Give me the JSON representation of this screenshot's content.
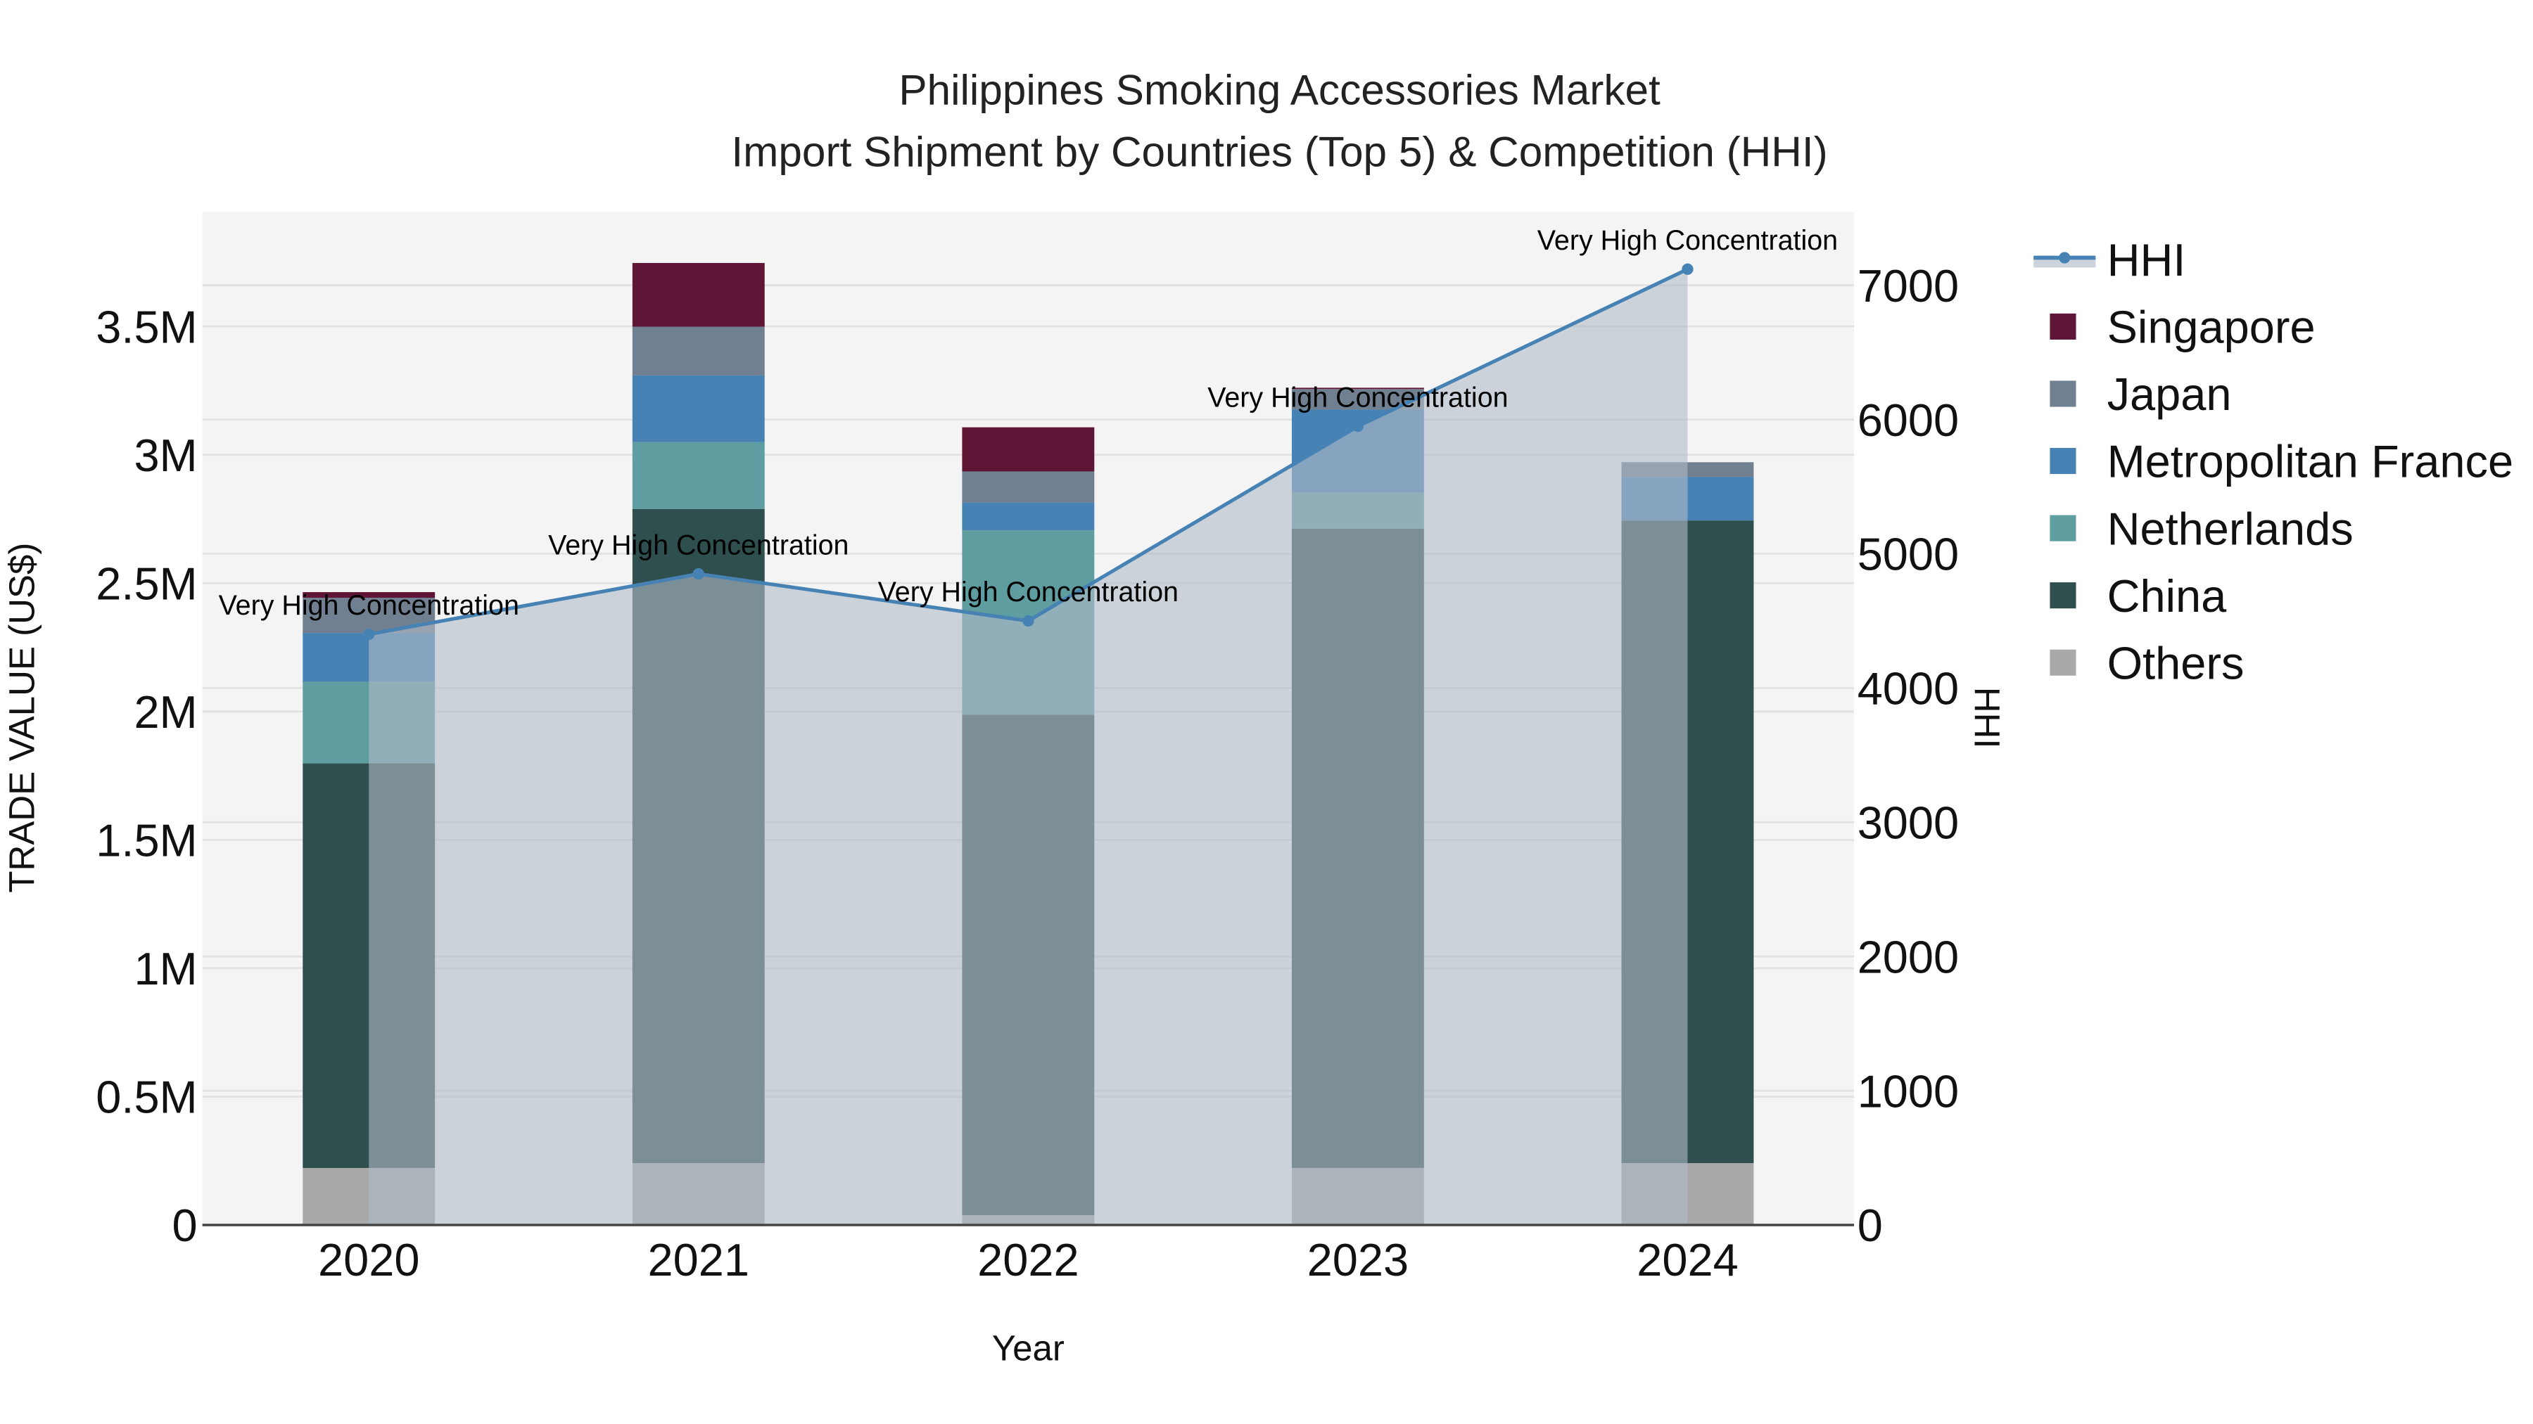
{
  "chart_data": {
    "type": "bar",
    "subtype": "stacked bar with line overlay (secondary axis)",
    "title": "Philippines Smoking Accessories Market",
    "subtitle": "Import Shipment by Countries (Top 5) & Competition (HHI)",
    "xlabel": "Year",
    "ylabel": "TRADE VALUE (US$)",
    "y2label": "HHI",
    "categories": [
      "2020",
      "2021",
      "2022",
      "2023",
      "2024"
    ],
    "ylim": [
      0,
      3950000
    ],
    "y_ticks": [
      0,
      500000,
      1000000,
      1500000,
      2000000,
      2500000,
      3000000,
      3500000
    ],
    "y_tick_labels": [
      "0",
      "0.5M",
      "1M",
      "1.5M",
      "2M",
      "2.5M",
      "3M",
      "3.5M"
    ],
    "y2lim": [
      0,
      7550
    ],
    "y2_ticks": [
      0,
      1000,
      2000,
      3000,
      4000,
      5000,
      6000,
      7000
    ],
    "y2_tick_labels": [
      "0",
      "1000",
      "2000",
      "3000",
      "4000",
      "5000",
      "6000",
      "7000"
    ],
    "grid": true,
    "legend_position": "right",
    "series": [
      {
        "name": "Others",
        "color": "#a9a9a9",
        "values": [
          222000,
          241000,
          38000,
          222000,
          241000
        ]
      },
      {
        "name": "China",
        "color": "#2f4f4f",
        "values": [
          1576000,
          2548000,
          1950000,
          2490000,
          2503000
        ]
      },
      {
        "name": "Netherlands",
        "color": "#5f9ea0",
        "values": [
          318000,
          260000,
          718000,
          140000,
          0
        ]
      },
      {
        "name": "Metropolitan France",
        "color": "#4682b4",
        "values": [
          190000,
          260000,
          108000,
          324000,
          170000
        ]
      },
      {
        "name": "Japan",
        "color": "#708090",
        "values": [
          137000,
          190000,
          121000,
          80000,
          57000
        ]
      },
      {
        "name": "Singapore",
        "color": "#5f1535",
        "values": [
          22000,
          248000,
          172000,
          5000,
          0
        ]
      }
    ],
    "line_series": {
      "name": "HHI",
      "axis": "y2",
      "color": "#4682b4",
      "fill_color": "rgba(176,186,200,0.6)",
      "values": [
        4400,
        4850,
        4500,
        5950,
        7120
      ],
      "annotations": [
        "Very High Concentration",
        "Very High Concentration",
        "Very High Concentration",
        "Very High Concentration",
        "Very High Concentration"
      ]
    }
  },
  "legend": {
    "items": [
      {
        "label": "HHI",
        "kind": "line"
      },
      {
        "label": "Singapore",
        "kind": "box",
        "color": "#5f1535"
      },
      {
        "label": "Japan",
        "kind": "box",
        "color": "#708090"
      },
      {
        "label": "Metropolitan France",
        "kind": "box",
        "color": "#4682b4"
      },
      {
        "label": "Netherlands",
        "kind": "box",
        "color": "#5f9ea0"
      },
      {
        "label": "China",
        "kind": "box",
        "color": "#2f4f4f"
      },
      {
        "label": "Others",
        "kind": "box",
        "color": "#a9a9a9"
      }
    ]
  }
}
